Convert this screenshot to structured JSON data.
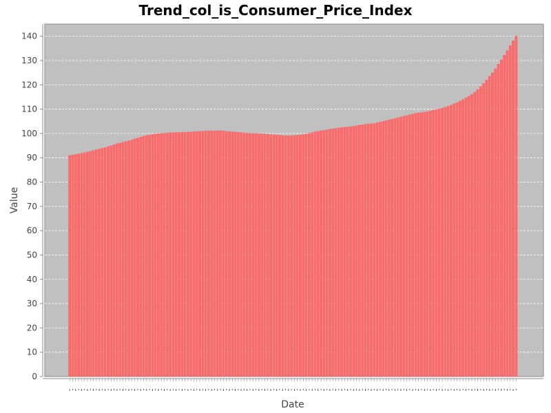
{
  "chart_data": {
    "type": "bar",
    "title": "Trend_col_is_Consumer_Price_Index",
    "xlabel": "Date",
    "ylabel": "Value",
    "ylim": [
      0,
      145
    ],
    "yticks": [
      0,
      10,
      20,
      30,
      40,
      50,
      60,
      70,
      80,
      90,
      100,
      110,
      120,
      130,
      140
    ],
    "grid": true,
    "legend": "none",
    "colors": {
      "plot_background": "#c0c0c0",
      "bar_fill": "#ff6b6b",
      "bar_edge": "#ff4c4c",
      "gridline": "#ffffff",
      "axis": "#888888"
    },
    "values": [
      91.0,
      91.2,
      91.4,
      91.6,
      91.8,
      92.1,
      92.4,
      92.7,
      93.0,
      93.3,
      93.6,
      93.9,
      94.2,
      94.6,
      95.0,
      95.4,
      95.8,
      96.1,
      96.4,
      96.7,
      97.0,
      97.4,
      97.8,
      98.1,
      98.5,
      98.9,
      99.2,
      99.4,
      99.6,
      99.8,
      99.9,
      100.0,
      100.1,
      100.2,
      100.3,
      100.3,
      100.4,
      100.4,
      100.5,
      100.5,
      100.6,
      100.6,
      100.7,
      100.8,
      100.9,
      100.9,
      101.0,
      101.0,
      101.1,
      101.1,
      101.1,
      101.1,
      101.0,
      100.9,
      100.8,
      100.7,
      100.6,
      100.5,
      100.4,
      100.3,
      100.2,
      100.1,
      100.0,
      100.0,
      99.9,
      99.9,
      99.8,
      99.7,
      99.6,
      99.5,
      99.4,
      99.3,
      99.2,
      99.1,
      99.1,
      99.1,
      99.2,
      99.3,
      99.4,
      99.6,
      99.8,
      100.1,
      100.4,
      100.7,
      100.9,
      101.1,
      101.3,
      101.5,
      101.7,
      101.9,
      102.1,
      102.3,
      102.5,
      102.6,
      102.7,
      102.8,
      103.0,
      103.2,
      103.4,
      103.6,
      103.8,
      103.9,
      104.0,
      104.1,
      104.4,
      104.7,
      105.0,
      105.3,
      105.6,
      105.9,
      106.2,
      106.5,
      106.8,
      107.1,
      107.4,
      107.7,
      108.0,
      108.3,
      108.5,
      108.6,
      108.8,
      109.0,
      109.3,
      109.6,
      109.9,
      110.1,
      110.4,
      110.8,
      111.2,
      111.7,
      112.2,
      112.7,
      113.3,
      113.9,
      114.6,
      115.3,
      116.1,
      117.0,
      118.1,
      119.3,
      120.6,
      122.0,
      123.5,
      125.0,
      126.7,
      128.5,
      130.3,
      132.2,
      134.1,
      136.1,
      138.1,
      140.1
    ]
  }
}
